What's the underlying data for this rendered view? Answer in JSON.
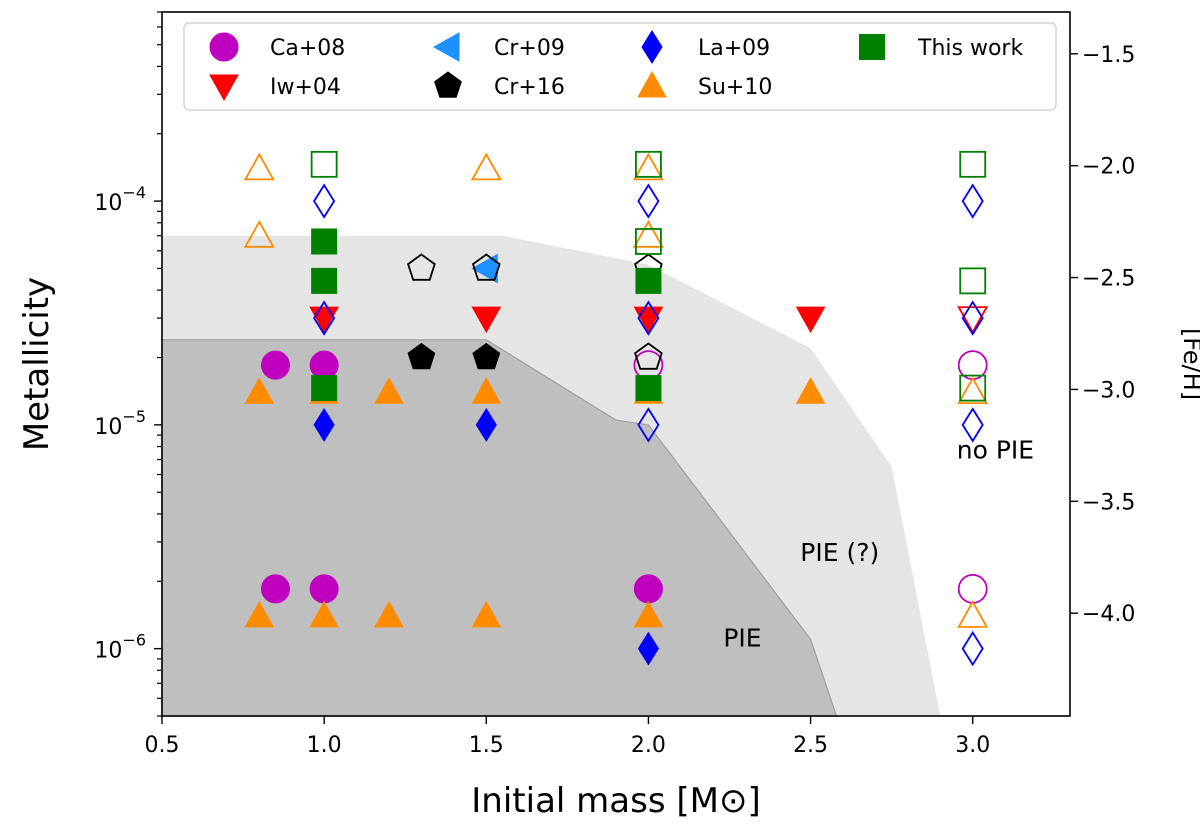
{
  "chart_data": {
    "type": "scatter",
    "xlabel": "Initial mass [M⊙]",
    "ylabel": "Metallicity",
    "ylabel_right": "[Fe/H]",
    "xlim": [
      0.5,
      3.3
    ],
    "ylim": [
      5e-07,
      0.0007
    ],
    "yscale": "log",
    "x_ticks": [
      0.5,
      1.0,
      1.5,
      2.0,
      2.5,
      3.0
    ],
    "x_tick_labels": [
      "0.5",
      "1.0",
      "1.5",
      "2.0",
      "2.5",
      "3.0"
    ],
    "y_ticks": [
      {
        "value": 1e-06,
        "base": "10",
        "exp": "−6"
      },
      {
        "value": 1e-05,
        "base": "10",
        "exp": "−5"
      },
      {
        "value": 0.0001,
        "base": "10",
        "exp": "−4"
      }
    ],
    "feh_ticks": [
      {
        "value": -1.5,
        "label": "−1.5"
      },
      {
        "value": -2.0,
        "label": "−2.0"
      },
      {
        "value": -2.5,
        "label": "−2.5"
      },
      {
        "value": -3.0,
        "label": "−3.0"
      },
      {
        "value": -3.5,
        "label": "−3.5"
      },
      {
        "value": -4.0,
        "label": "−4.0"
      }
    ],
    "z_solar": 0.0144,
    "regions": [
      {
        "name": "PIE (?)",
        "color": "#e5e5e5",
        "boundary": [
          [
            0.5,
            7e-05
          ],
          [
            1.55,
            7e-05
          ],
          [
            2.0,
            5.2e-05
          ],
          [
            2.5,
            2.2e-05
          ],
          [
            2.75,
            6.5e-06
          ],
          [
            2.9,
            5e-07
          ]
        ]
      },
      {
        "name": "PIE",
        "color": "#bfbfbf",
        "boundary": [
          [
            0.5,
            2.4e-05
          ],
          [
            1.5,
            2.4e-05
          ],
          [
            1.9,
            1.05e-05
          ],
          [
            2.0,
            1e-05
          ],
          [
            2.5,
            1.1e-06
          ],
          [
            2.58,
            5e-07
          ]
        ]
      }
    ],
    "region_labels": [
      {
        "text": "PIE",
        "x": 2.29,
        "y": 1.1e-06
      },
      {
        "text": "PIE (?)",
        "x": 2.59,
        "y": 2.65e-06
      },
      {
        "text": "no PIE",
        "x": 3.07,
        "y": 7.6e-06
      }
    ],
    "series": [
      {
        "name": "Ca+08",
        "marker": "circle",
        "color": "#bf00bf",
        "filled": [
          [
            0.85,
            1.85e-05
          ],
          [
            1.0,
            1.85e-05
          ],
          [
            0.85,
            1.85e-06
          ],
          [
            1.0,
            1.85e-06
          ],
          [
            2.0,
            1.85e-06
          ]
        ],
        "open": [
          [
            2.0,
            1.85e-05
          ],
          [
            3.0,
            1.85e-05
          ],
          [
            3.0,
            1.85e-06
          ]
        ]
      },
      {
        "name": "Iw+04",
        "marker": "triangle-down",
        "color": "#ff0000",
        "filled": [
          [
            1.0,
            3e-05
          ],
          [
            1.5,
            3e-05
          ],
          [
            2.0,
            3e-05
          ],
          [
            2.5,
            3e-05
          ]
        ],
        "open": [
          [
            3.0,
            3e-05
          ]
        ]
      },
      {
        "name": "Cr+09",
        "marker": "triangle-left",
        "color": "#1e90ff",
        "filled": [
          [
            1.5,
            5e-05
          ]
        ],
        "open": []
      },
      {
        "name": "Cr+16",
        "marker": "pentagon",
        "color": "#000000",
        "filled": [
          [
            1.3,
            2e-05
          ],
          [
            1.5,
            2e-05
          ]
        ],
        "open": [
          [
            1.3,
            5e-05
          ],
          [
            1.5,
            5e-05
          ],
          [
            2.0,
            5e-05
          ],
          [
            2.0,
            2e-05
          ]
        ]
      },
      {
        "name": "La+09",
        "marker": "diamond",
        "color": "#0000ff",
        "filled": [
          [
            1.0,
            1e-05
          ],
          [
            1.5,
            1e-05
          ],
          [
            2.0,
            1e-06
          ]
        ],
        "open": [
          [
            1.0,
            0.0001
          ],
          [
            1.0,
            3e-05
          ],
          [
            2.0,
            0.0001
          ],
          [
            2.0,
            3e-05
          ],
          [
            2.0,
            1e-05
          ],
          [
            3.0,
            0.0001
          ],
          [
            3.0,
            3e-05
          ],
          [
            3.0,
            1e-05
          ],
          [
            3.0,
            1e-06
          ]
        ]
      },
      {
        "name": "Su+10",
        "marker": "triangle-up",
        "color": "#ff8c00",
        "filled": [
          [
            0.8,
            1.4e-05
          ],
          [
            1.0,
            1.4e-05
          ],
          [
            1.2,
            1.4e-05
          ],
          [
            1.5,
            1.4e-05
          ],
          [
            2.0,
            1.4e-05
          ],
          [
            2.5,
            1.4e-05
          ],
          [
            0.8,
            1.4e-06
          ],
          [
            1.0,
            1.4e-06
          ],
          [
            1.2,
            1.4e-06
          ],
          [
            1.5,
            1.4e-06
          ],
          [
            2.0,
            1.4e-06
          ]
        ],
        "open": [
          [
            0.8,
            0.00014
          ],
          [
            0.8,
            7e-05
          ],
          [
            1.5,
            0.00014
          ],
          [
            2.0,
            0.00014
          ],
          [
            2.0,
            7e-05
          ],
          [
            3.0,
            1.4e-05
          ],
          [
            3.0,
            1.4e-06
          ]
        ]
      },
      {
        "name": "This work",
        "marker": "square",
        "color": "#008000",
        "filled": [
          [
            1.0,
            6.6e-05
          ],
          [
            1.0,
            4.4e-05
          ],
          [
            1.0,
            1.46e-05
          ],
          [
            2.0,
            4.4e-05
          ],
          [
            2.0,
            1.46e-05
          ]
        ],
        "open": [
          [
            1.0,
            0.000146
          ],
          [
            2.0,
            0.000146
          ],
          [
            2.0,
            6.6e-05
          ],
          [
            3.0,
            0.000146
          ],
          [
            3.0,
            4.4e-05
          ],
          [
            3.0,
            1.46e-05
          ]
        ]
      }
    ],
    "legend": {
      "position": "top",
      "columns": 4,
      "entries": [
        "Ca+08",
        "Iw+04",
        "Cr+09",
        "Cr+16",
        "La+09",
        "Su+10",
        "This work"
      ]
    }
  }
}
